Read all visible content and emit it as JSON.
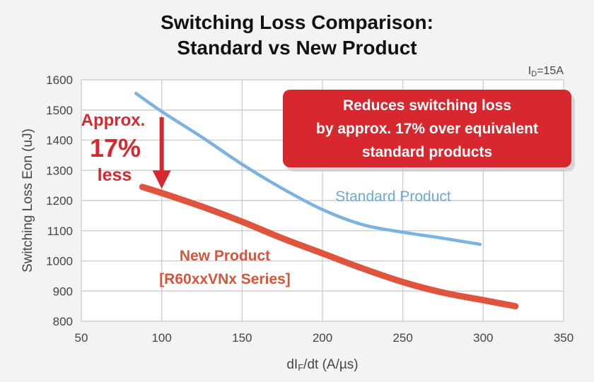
{
  "chart_data": {
    "type": "line",
    "title": [
      "Switching Loss Comparison:",
      "Standard vs New Product"
    ],
    "xlabel": "dIF/dt (A/µs)",
    "ylabel": "Switching Loss Eon (uJ)",
    "xlim": [
      50,
      350
    ],
    "ylim": [
      800,
      1600
    ],
    "x_ticks": [
      50,
      100,
      150,
      200,
      250,
      300,
      350
    ],
    "y_ticks": [
      800,
      900,
      1000,
      1100,
      1200,
      1300,
      1400,
      1500,
      1600
    ],
    "grid": true,
    "condition": "ID=15A",
    "series": [
      {
        "name": "Standard Product",
        "color": "#7ab3df",
        "x": [
          84,
          100,
          125,
          150,
          175,
          200,
          225,
          250,
          275,
          298
        ],
        "y": [
          1555,
          1495,
          1410,
          1320,
          1240,
          1170,
          1120,
          1095,
          1075,
          1055
        ]
      },
      {
        "name": "New Product [R60xxVNx Series]",
        "color": "#e0533d",
        "x": [
          88,
          100,
          125,
          150,
          175,
          200,
          225,
          250,
          275,
          300,
          320
        ],
        "y": [
          1245,
          1225,
          1180,
          1130,
          1075,
          1025,
          975,
          930,
          895,
          870,
          850
        ]
      }
    ],
    "annotations": {
      "approx_line1": "Approx.",
      "approx_line2": "17%",
      "approx_line3": "less",
      "callout_line1": "Reduces switching loss",
      "callout_line2": "by approx. 17% over equivalent",
      "callout_line3": "standard products",
      "standard_label": "Standard Product",
      "new_label_line1": "New Product",
      "new_label_line2": "[R60xxVNx Series]",
      "arrow_x": 100,
      "arrow_from_y": 1495,
      "arrow_to_y": 1225
    },
    "colors": {
      "plot_bg": "#ffffff",
      "grid": "#c8c8c8",
      "callout_bg": "#d7282f",
      "approx_text": "#d7282f"
    }
  }
}
